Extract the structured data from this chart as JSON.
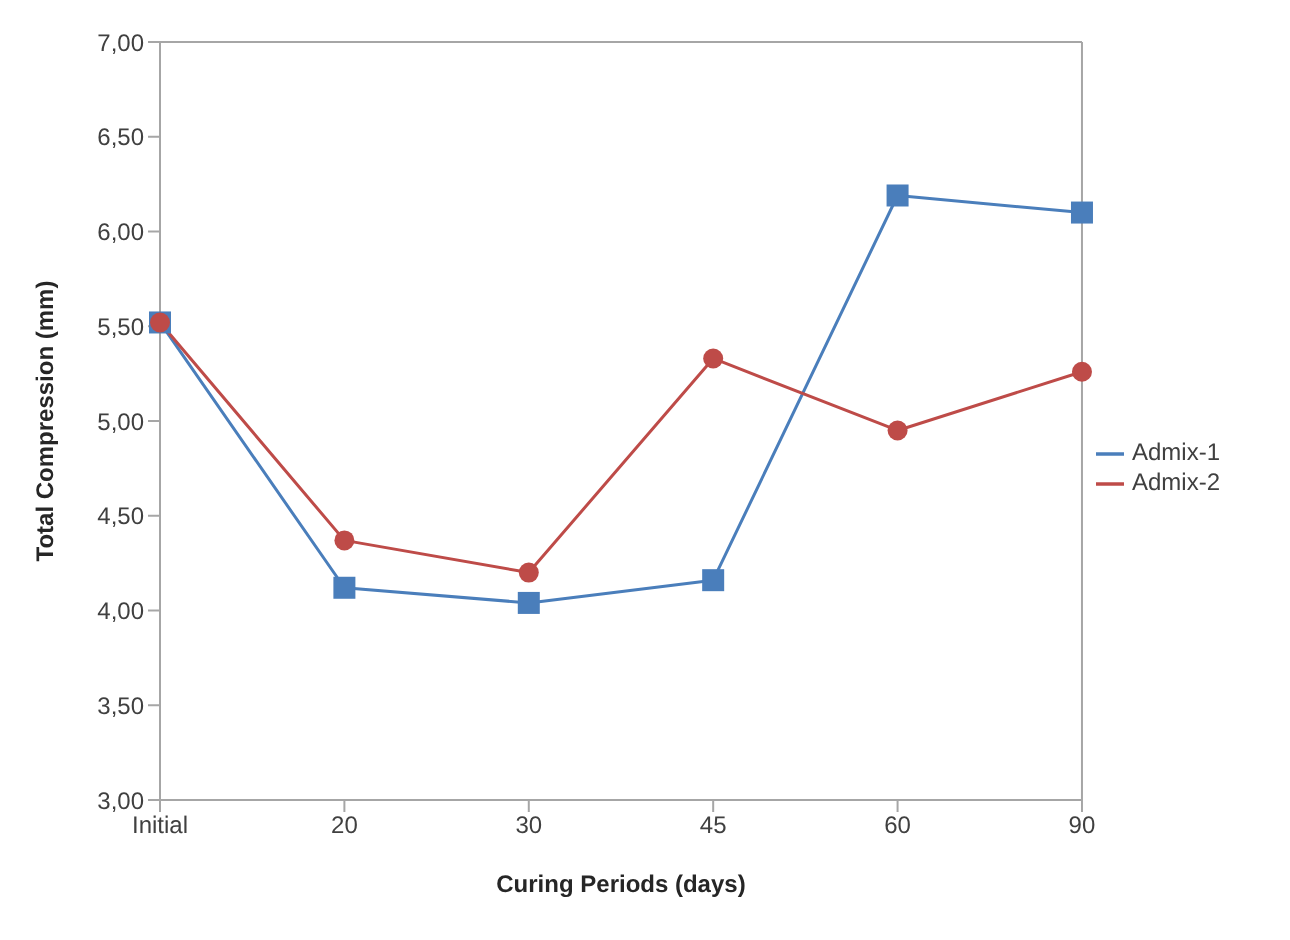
{
  "chart_data": {
    "type": "line",
    "xlabel": "Curing Periods (days)",
    "ylabel": "Total Compression (mm)",
    "categories": [
      "Initial",
      "20",
      "30",
      "45",
      "60",
      "90"
    ],
    "series": [
      {
        "name": "Admix-1",
        "color": "#4a7ebb",
        "marker": "square",
        "values": [
          5.52,
          4.12,
          4.04,
          4.16,
          6.19,
          6.1
        ]
      },
      {
        "name": "Admix-2",
        "color": "#be4b48",
        "marker": "circle",
        "values": [
          5.52,
          4.37,
          4.2,
          5.33,
          4.95,
          5.26
        ]
      }
    ],
    "ylim": [
      3,
      7
    ],
    "yticks": [
      {
        "value": 3,
        "label": "3,00"
      },
      {
        "value": 3.5,
        "label": "3,50"
      },
      {
        "value": 4,
        "label": "4,00"
      },
      {
        "value": 4.5,
        "label": "4,50"
      },
      {
        "value": 5,
        "label": "5,00"
      },
      {
        "value": 5.5,
        "label": "5,50"
      },
      {
        "value": 6,
        "label": "6,00"
      },
      {
        "value": 6.5,
        "label": "6,50"
      },
      {
        "value": 7,
        "label": "7,00"
      }
    ],
    "grid": false,
    "legend": "right"
  }
}
